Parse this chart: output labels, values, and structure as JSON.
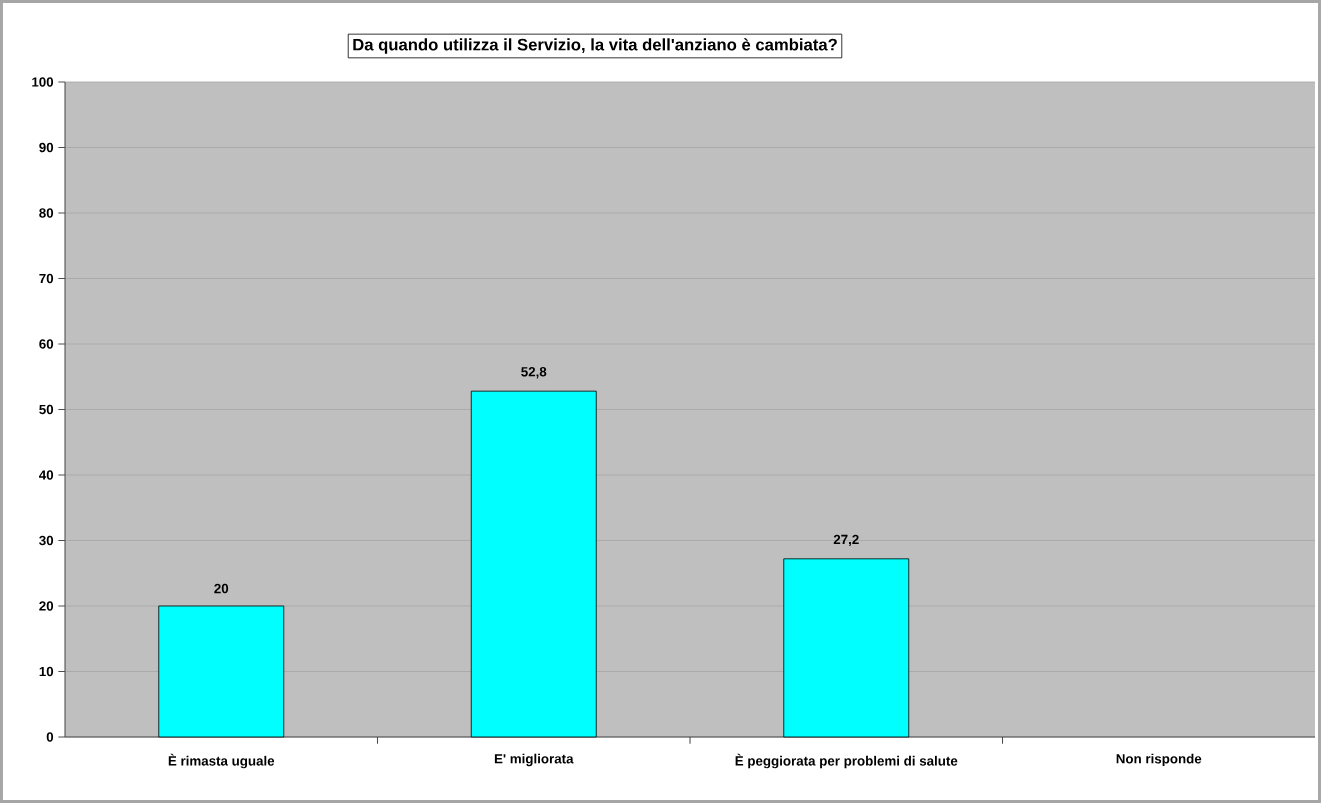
{
  "chart_data": {
    "type": "bar",
    "title": "Da quando  utilizza il Servizio, la vita dell'anziano è cambiata?",
    "categories": [
      "È rimasta uguale",
      "E' migliorata",
      "È peggiorata per problemi di salute",
      "Non risponde"
    ],
    "values": [
      20,
      52.8,
      27.2,
      null
    ],
    "value_labels": [
      "20",
      "52,8",
      "27,2",
      null
    ],
    "color": "#00ffff",
    "ylim": [
      0,
      100
    ],
    "yticks": [
      0,
      10,
      20,
      30,
      40,
      50,
      60,
      70,
      80,
      90,
      100
    ],
    "grid": "y"
  }
}
